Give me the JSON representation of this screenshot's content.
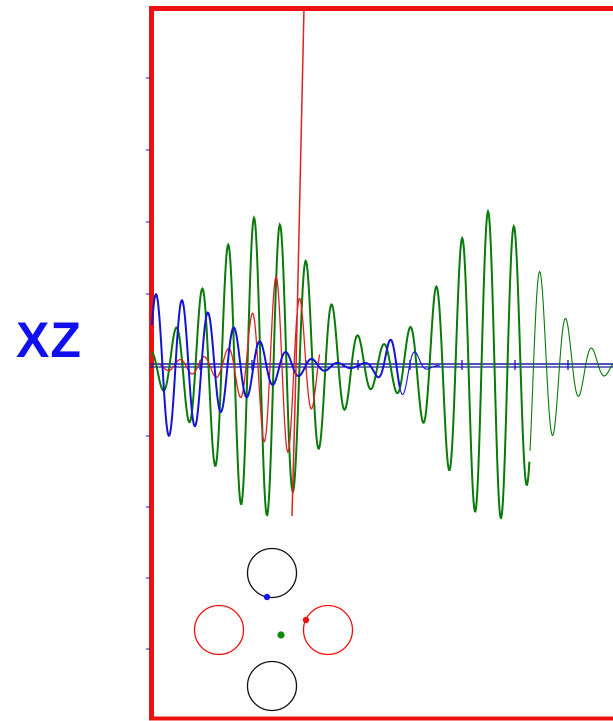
{
  "plane": {
    "label": "XZ",
    "label_color": "#1010ee"
  },
  "colors": {
    "frame": "#ee1111",
    "axis": "#1a1aa8",
    "green_wave": "#0a7a0a",
    "blue_wave": "#1515d0",
    "red_wave": "#dd2222",
    "red_beam": "#dd2222",
    "circle_black": "#111111",
    "circle_red": "#ee1111",
    "dot_blue": "#1515ee",
    "dot_green": "#0a8a0a",
    "dot_red": "#ee1111"
  },
  "icons": {
    "top_circle": "circle-outline",
    "bottom_circle": "circle-outline",
    "left_circle": "circle-outline",
    "right_circle": "circle-outline"
  }
}
